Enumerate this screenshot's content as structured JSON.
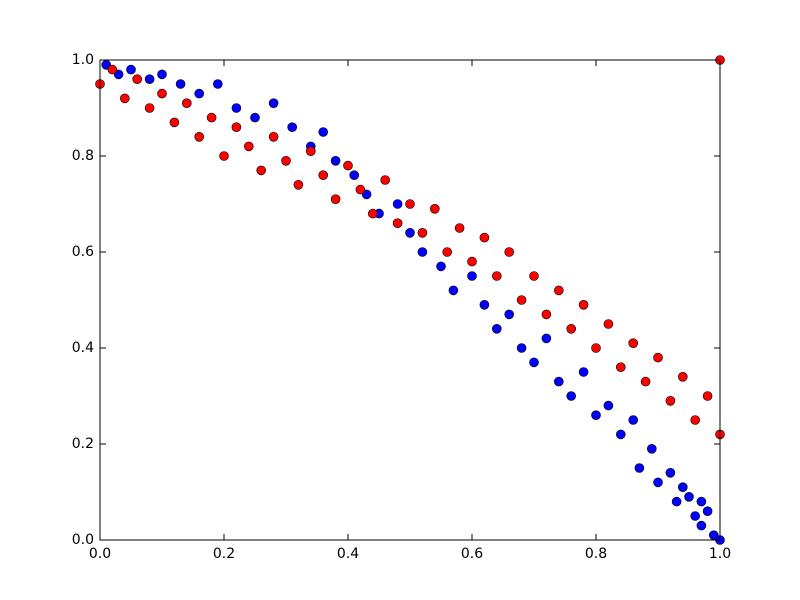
{
  "chart_data": {
    "type": "scatter",
    "xlim": [
      0,
      1
    ],
    "ylim": [
      0,
      1
    ],
    "xticks": [
      {
        "value": 0,
        "label": "0.0"
      },
      0.2,
      0.4,
      0.6,
      0.8,
      {
        "value": 1,
        "label": "1.0"
      }
    ],
    "yticks": [
      {
        "value": 0,
        "label": "0.0"
      },
      0.2,
      0.4,
      0.6,
      0.8,
      {
        "value": 1,
        "label": "1.0"
      }
    ],
    "grid": false,
    "series": [
      {
        "color": "#0000ff",
        "x": [
          0.01,
          0.03,
          0.05,
          0.08,
          0.1,
          0.13,
          0.16,
          0.19,
          0.22,
          0.25,
          0.28,
          0.31,
          0.34,
          0.36,
          0.38,
          0.41,
          0.43,
          0.45,
          0.48,
          0.5,
          0.52,
          0.55,
          0.57,
          0.6,
          0.62,
          0.64,
          0.66,
          0.68,
          0.7,
          0.72,
          0.74,
          0.76,
          0.78,
          0.8,
          0.82,
          0.84,
          0.86,
          0.87,
          0.89,
          0.9,
          0.92,
          0.93,
          0.95,
          0.96,
          0.97,
          0.98,
          0.99,
          1.0,
          0.94,
          0.97
        ],
        "values": [
          0.99,
          0.97,
          0.98,
          0.96,
          0.97,
          0.95,
          0.93,
          0.95,
          0.9,
          0.88,
          0.91,
          0.86,
          0.82,
          0.85,
          0.79,
          0.76,
          0.72,
          0.68,
          0.7,
          0.64,
          0.6,
          0.57,
          0.52,
          0.55,
          0.49,
          0.44,
          0.47,
          0.4,
          0.37,
          0.42,
          0.33,
          0.3,
          0.35,
          0.26,
          0.28,
          0.22,
          0.25,
          0.15,
          0.19,
          0.12,
          0.14,
          0.08,
          0.09,
          0.05,
          0.03,
          0.06,
          0.01,
          0.0,
          0.11,
          0.08
        ]
      },
      {
        "color": "#ff0000",
        "x": [
          0.0,
          0.02,
          0.04,
          0.06,
          0.08,
          0.1,
          0.12,
          0.14,
          0.16,
          0.18,
          0.2,
          0.22,
          0.24,
          0.26,
          0.28,
          0.3,
          0.32,
          0.34,
          0.36,
          0.38,
          0.4,
          0.42,
          0.44,
          0.46,
          0.48,
          0.5,
          0.52,
          0.54,
          0.56,
          0.58,
          0.6,
          0.62,
          0.64,
          0.66,
          0.68,
          0.7,
          0.72,
          0.74,
          0.76,
          0.78,
          0.8,
          0.82,
          0.84,
          0.86,
          0.88,
          0.9,
          0.92,
          0.94,
          0.96,
          0.98,
          1.0,
          1.0
        ],
        "values": [
          0.95,
          0.98,
          0.92,
          0.96,
          0.9,
          0.93,
          0.87,
          0.91,
          0.84,
          0.88,
          0.8,
          0.86,
          0.82,
          0.77,
          0.84,
          0.79,
          0.74,
          0.81,
          0.76,
          0.71,
          0.78,
          0.73,
          0.68,
          0.75,
          0.66,
          0.7,
          0.64,
          0.69,
          0.6,
          0.65,
          0.58,
          0.63,
          0.55,
          0.6,
          0.5,
          0.55,
          0.47,
          0.52,
          0.44,
          0.49,
          0.4,
          0.45,
          0.36,
          0.41,
          0.33,
          0.38,
          0.29,
          0.34,
          0.25,
          0.3,
          0.22,
          1.0
        ]
      }
    ]
  }
}
